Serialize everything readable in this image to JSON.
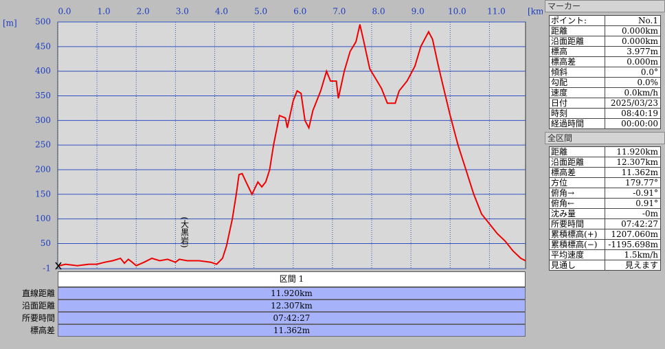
{
  "chart_data": {
    "type": "line",
    "x_unit_label": "[km]",
    "y_unit_label": "[m]",
    "annotation": "(大黒岩)",
    "color": "#ee0000",
    "grid": true,
    "xlim": [
      0,
      11.92
    ],
    "ylim": [
      -1,
      500
    ],
    "xticks": [
      {
        "value": 0,
        "label": "0.0"
      },
      {
        "value": 1,
        "label": "1.0"
      },
      {
        "value": 2,
        "label": "2.0"
      },
      {
        "value": 3,
        "label": "3.0"
      },
      {
        "value": 4,
        "label": "4.0"
      },
      {
        "value": 5,
        "label": "5.0"
      },
      {
        "value": 6,
        "label": "6.0"
      },
      {
        "value": 7,
        "label": "7.0"
      },
      {
        "value": 8,
        "label": "8.0"
      },
      {
        "value": 9,
        "label": "9.0"
      },
      {
        "value": 10,
        "label": "10.0"
      },
      {
        "value": 11,
        "label": "11.0"
      }
    ],
    "yticks": [
      -1,
      50,
      100,
      150,
      200,
      250,
      300,
      350,
      400,
      450,
      500
    ],
    "x": [
      0,
      0.2,
      0.5,
      0.8,
      1.0,
      1.2,
      1.4,
      1.6,
      1.7,
      1.8,
      1.9,
      2.0,
      2.2,
      2.4,
      2.6,
      2.8,
      3.0,
      3.1,
      3.3,
      3.6,
      3.9,
      4.05,
      4.2,
      4.3,
      4.45,
      4.55,
      4.62,
      4.7,
      4.8,
      4.95,
      5.1,
      5.2,
      5.3,
      5.4,
      5.5,
      5.65,
      5.8,
      5.85,
      6.0,
      6.1,
      6.2,
      6.3,
      6.4,
      6.5,
      6.7,
      6.85,
      6.95,
      7.1,
      7.15,
      7.3,
      7.45,
      7.6,
      7.7,
      7.8,
      7.95,
      8.1,
      8.25,
      8.4,
      8.6,
      8.7,
      8.9,
      9.1,
      9.25,
      9.45,
      9.55,
      9.7,
      9.85,
      10.0,
      10.2,
      10.4,
      10.6,
      10.8,
      11.0,
      11.2,
      11.4,
      11.6,
      11.8,
      11.92
    ],
    "values": [
      4,
      8,
      5,
      8,
      8,
      12,
      15,
      20,
      10,
      18,
      12,
      5,
      12,
      20,
      15,
      18,
      12,
      18,
      15,
      15,
      12,
      8,
      20,
      45,
      100,
      150,
      190,
      192,
      175,
      150,
      175,
      165,
      175,
      200,
      250,
      310,
      305,
      285,
      340,
      360,
      355,
      300,
      285,
      320,
      360,
      400,
      380,
      380,
      345,
      400,
      440,
      460,
      495,
      460,
      405,
      385,
      365,
      335,
      335,
      360,
      380,
      410,
      450,
      480,
      465,
      410,
      360,
      310,
      250,
      200,
      150,
      110,
      90,
      70,
      55,
      35,
      20,
      15
    ]
  },
  "section_table": {
    "header": "区間 1",
    "rows": [
      [
        "直線距離",
        "11.920km"
      ],
      [
        "沿面距離",
        "12.307km"
      ],
      [
        "所要時間",
        "07:42:27"
      ],
      [
        "標高差",
        "11.362m"
      ]
    ]
  },
  "marker_panel": {
    "title": "マーカー",
    "rows": [
      [
        "ポイント:",
        "No.1"
      ],
      [
        "距離",
        "0.000km"
      ],
      [
        "沿面距離",
        "0.000km"
      ],
      [
        "標高",
        "3.977m"
      ],
      [
        "標高差",
        "0.000m"
      ],
      [
        "傾斜",
        "0.0°"
      ],
      [
        "勾配",
        "0.0%"
      ],
      [
        "速度",
        "0.0km/h"
      ],
      [
        "日付",
        "2025/03/23"
      ],
      [
        "時刻",
        "08:40:19"
      ],
      [
        "経過時間",
        "00:00:00"
      ]
    ]
  },
  "total_panel": {
    "title": "全区間",
    "rows": [
      [
        "距離",
        "11.920km"
      ],
      [
        "沿面距離",
        "12.307km"
      ],
      [
        "標高差",
        "11.362m"
      ],
      [
        "方位",
        "179.77°"
      ],
      [
        "俯角→",
        "-0.91°"
      ],
      [
        "俯角←",
        "0.91°"
      ],
      [
        "沈み量",
        "-0m"
      ],
      [
        "所要時間",
        "07:42:27"
      ],
      [
        "累積標高(+)",
        "1207.060m"
      ],
      [
        "累積標高(−)",
        "-1195.698m"
      ],
      [
        "平均速度",
        "1.5km/h"
      ],
      [
        "見通し",
        "見えます"
      ]
    ]
  }
}
